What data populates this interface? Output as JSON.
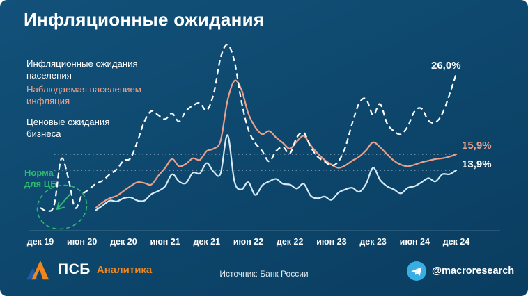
{
  "page": {
    "title": "Инфляционные ожидания"
  },
  "legend": [
    {
      "label": "Инфляционные ожидания\nнаселения",
      "color": "#ffffff"
    },
    {
      "label": "Наблюдаемая населением\nинфляция",
      "color": "#eba089"
    },
    {
      "label": "Ценовые ожидания\nбизнеса",
      "color": "#ffffff"
    }
  ],
  "chart_data": {
    "type": "line",
    "title": "Инфляционные ожидания",
    "x_frequency": "monthly",
    "x_range": [
      "дек 19",
      "дек 24"
    ],
    "x_ticks": [
      "дек 19",
      "июн 20",
      "дек 20",
      "июн 21",
      "дек 21",
      "июн 22",
      "дек 22",
      "июн 23",
      "дек 23",
      "июн 24",
      "дек 24"
    ],
    "ylim": [
      6,
      30
    ],
    "unit": "%",
    "grid": "two dotted horizontal reference lines",
    "legend_position": "left, as colored text labels",
    "reference_lines": [
      15.9,
      13.9
    ],
    "annotation": {
      "text": "Норма\nдля ЦБ",
      "color": "#2fb873"
    },
    "series": [
      {
        "name": "Инфляционные ожидания населения",
        "color": "#d6e9f5",
        "label_color": "#ffffff",
        "style": "solid",
        "end_label": "13,9%",
        "values": [
          null,
          null,
          null,
          null,
          null,
          null,
          null,
          null,
          8.9,
          9.5,
          10.1,
          10.0,
          10.4,
          10.5,
          10.1,
          10.1,
          10.9,
          11.3,
          11.9,
          13.4,
          12.5,
          12.3,
          13.6,
          13.5,
          14.8,
          13.7,
          13.5,
          18.3,
          12.5,
          11.5,
          12.4,
          10.8,
          12.0,
          12.5,
          12.8,
          12.2,
          12.1,
          11.6,
          12.2,
          10.7,
          10.4,
          10.6,
          10.2,
          11.1,
          11.5,
          11.7,
          11.2,
          12.2,
          14.2,
          12.7,
          11.9,
          11.5,
          11.0,
          11.7,
          11.9,
          12.4,
          12.9,
          12.5,
          13.4,
          13.4,
          13.9
        ]
      },
      {
        "name": "Наблюдаемая населением инфляция",
        "color": "#eba089",
        "label_color": "#eba089",
        "style": "solid",
        "end_label": "15,9%",
        "values": [
          null,
          null,
          null,
          null,
          null,
          null,
          null,
          null,
          9.2,
          9.9,
          10.4,
          10.7,
          11.3,
          11.9,
          12.4,
          12.3,
          12.1,
          13.2,
          14.2,
          15.3,
          14.4,
          14.7,
          15.4,
          15.2,
          16.3,
          16.6,
          17.6,
          22.6,
          25.1,
          24.0,
          21.0,
          19.3,
          18.4,
          18.8,
          18.0,
          17.3,
          16.6,
          17.5,
          18.2,
          17.0,
          16.0,
          15.2,
          14.6,
          14.2,
          14.5,
          15.1,
          15.6,
          16.4,
          17.4,
          16.8,
          15.9,
          15.1,
          14.6,
          14.4,
          14.6,
          14.9,
          15.1,
          15.3,
          15.4,
          15.6,
          15.9
        ]
      },
      {
        "name": "Ценовые ожидания бизнеса",
        "color": "#ffffff",
        "label_color": "#ffffff",
        "style": "dashed",
        "end_label": "26,0%",
        "values": [
          9.2,
          8.8,
          9.6,
          15.3,
          13.0,
          9.2,
          10.8,
          11.5,
          12.2,
          12.6,
          13.4,
          14.0,
          15.1,
          15.4,
          17.5,
          20.0,
          21.3,
          20.8,
          20.3,
          21.0,
          20.0,
          21.3,
          22.0,
          22.3,
          21.4,
          23.5,
          28.0,
          29.6,
          27.5,
          22.5,
          19.0,
          17.3,
          16.3,
          15.0,
          16.3,
          16.8,
          16.0,
          18.0,
          18.6,
          16.8,
          15.6,
          15.0,
          14.5,
          15.0,
          16.8,
          19.8,
          22.3,
          22.8,
          20.8,
          22.2,
          19.8,
          18.8,
          18.4,
          19.4,
          21.3,
          21.6,
          20.1,
          19.9,
          21.0,
          23.3,
          26.0
        ]
      }
    ]
  },
  "footer": {
    "brand": "ПСБ",
    "brand_sub": "Аналитика",
    "source": "Источник: Банк России",
    "telegram": "@macroresearch"
  }
}
